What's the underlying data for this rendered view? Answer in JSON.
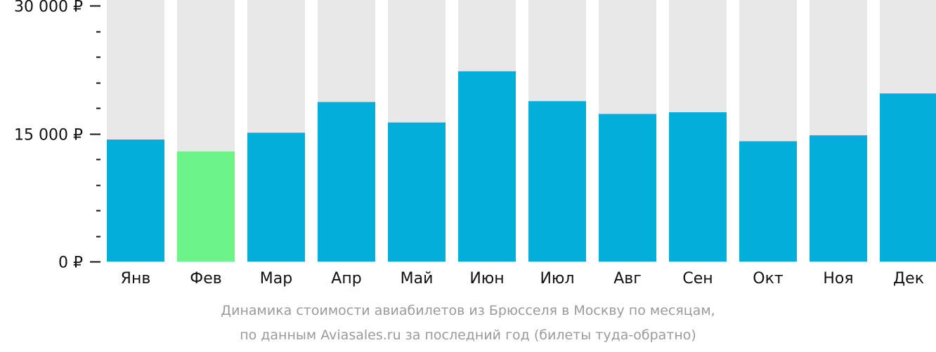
{
  "chart_data": {
    "type": "bar",
    "categories": [
      "Янв",
      "Фев",
      "Мар",
      "Апр",
      "Май",
      "Июн",
      "Июл",
      "Авг",
      "Сен",
      "Окт",
      "Ноя",
      "Дек"
    ],
    "values": [
      14300,
      12900,
      15100,
      18700,
      16300,
      22300,
      18800,
      17300,
      17500,
      14100,
      14800,
      19700
    ],
    "ylim": [
      0,
      30000
    ],
    "yticks": [
      {
        "value": 0,
        "label": "0 ₽"
      },
      {
        "value": 15000,
        "label": "15 000 ₽"
      },
      {
        "value": 30000,
        "label": "30 000 ₽"
      }
    ],
    "minor_tick_step": 3000,
    "highlight_index": 1,
    "colors": {
      "bar": "#03afda",
      "highlight": "#6cf38a",
      "background_bar": "#e8e8e8",
      "axis": "#111111"
    },
    "grid": false,
    "legend": "none"
  },
  "caption": {
    "line1": "Динамика стоимости авиабилетов из Брюсселя в Москву по месяцам,",
    "line2": "по данным Aviasales.ru за последний год (билеты туда-обратно)"
  }
}
